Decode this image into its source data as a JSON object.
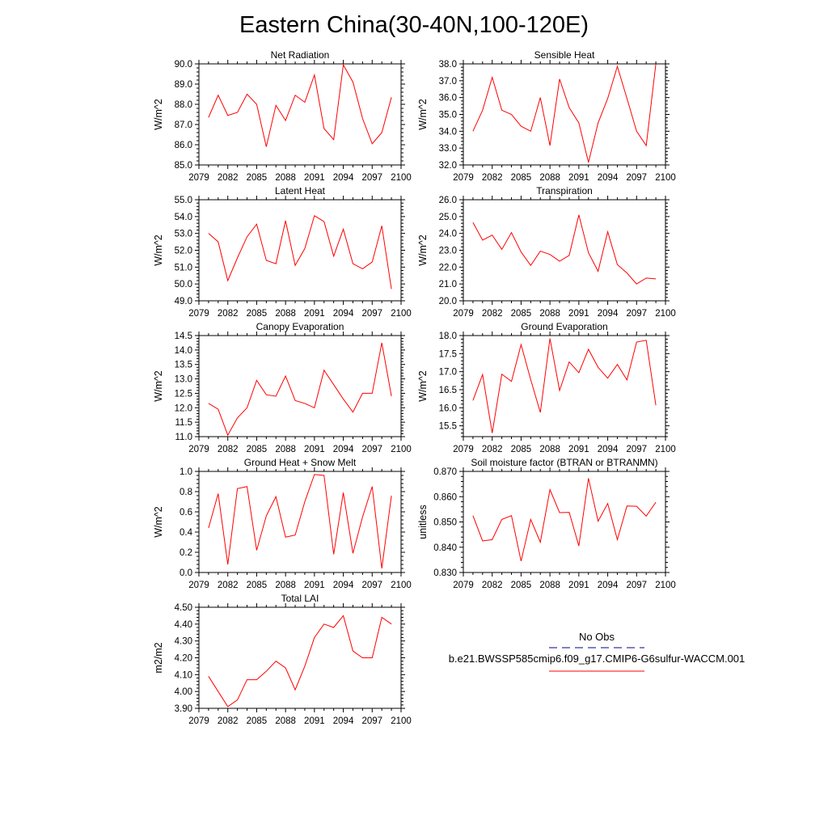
{
  "page_title": "Eastern China(30-40N,100-120E)",
  "colors": {
    "model": "#ff0000",
    "obs": "#000080",
    "axis": "#000000"
  },
  "legend": {
    "obs_label": "No Obs",
    "model_label": "b.e21.BWSSP585cmip6.f09_g17.CMIP6-G6sulfur-WACCM.001"
  },
  "chart_data": [
    {
      "type": "line",
      "title": "Net Radiation",
      "xlabel": "",
      "ylabel": "W/m^2",
      "xlim": [
        2079,
        2100
      ],
      "ylim": [
        85.0,
        90.0
      ],
      "xticks": [
        "2079",
        "2082",
        "2085",
        "2088",
        "2091",
        "2094",
        "2097",
        "2100"
      ],
      "yticks": [
        "85.0",
        "86.0",
        "87.0",
        "88.0",
        "89.0",
        "90.0"
      ],
      "x": [
        2080,
        2081,
        2082,
        2083,
        2084,
        2085,
        2086,
        2087,
        2088,
        2089,
        2090,
        2091,
        2092,
        2093,
        2094,
        2095,
        2096,
        2097,
        2098,
        2099
      ],
      "series": [
        {
          "values": [
            87.35,
            88.45,
            87.45,
            87.6,
            88.5,
            88.0,
            85.9,
            87.95,
            87.2,
            88.45,
            88.1,
            89.45,
            86.8,
            86.25,
            89.95,
            89.1,
            87.3,
            86.05,
            86.6,
            88.35
          ]
        }
      ]
    },
    {
      "type": "line",
      "title": "Sensible Heat",
      "xlabel": "",
      "ylabel": "W/m^2",
      "xlim": [
        2079,
        2100
      ],
      "ylim": [
        32.0,
        38.0
      ],
      "xticks": [
        "2079",
        "2082",
        "2085",
        "2088",
        "2091",
        "2094",
        "2097",
        "2100"
      ],
      "yticks": [
        "32.0",
        "33.0",
        "34.0",
        "35.0",
        "36.0",
        "37.0",
        "38.0"
      ],
      "x": [
        2080,
        2081,
        2082,
        2083,
        2084,
        2085,
        2086,
        2087,
        2088,
        2089,
        2090,
        2091,
        2092,
        2093,
        2094,
        2095,
        2096,
        2097,
        2098,
        2099
      ],
      "series": [
        {
          "values": [
            34.0,
            35.25,
            37.2,
            35.25,
            35.0,
            34.3,
            34.0,
            36.0,
            33.15,
            37.1,
            35.4,
            34.5,
            32.15,
            34.5,
            35.95,
            37.85,
            35.95,
            34.0,
            33.15,
            38.0
          ]
        }
      ]
    },
    {
      "type": "line",
      "title": "Latent Heat",
      "xlabel": "",
      "ylabel": "W/m^2",
      "xlim": [
        2079,
        2100
      ],
      "ylim": [
        49.0,
        55.0
      ],
      "xticks": [
        "2079",
        "2082",
        "2085",
        "2088",
        "2091",
        "2094",
        "2097",
        "2100"
      ],
      "yticks": [
        "49.0",
        "50.0",
        "51.0",
        "52.0",
        "53.0",
        "54.0",
        "55.0"
      ],
      "x": [
        2080,
        2081,
        2082,
        2083,
        2084,
        2085,
        2086,
        2087,
        2088,
        2089,
        2090,
        2091,
        2092,
        2093,
        2094,
        2095,
        2096,
        2097,
        2098,
        2099
      ],
      "series": [
        {
          "values": [
            53.0,
            52.5,
            50.2,
            51.55,
            52.8,
            53.55,
            51.4,
            51.2,
            53.75,
            51.1,
            52.1,
            54.05,
            53.7,
            51.65,
            53.25,
            51.2,
            50.9,
            51.3,
            53.45,
            49.7
          ]
        }
      ]
    },
    {
      "type": "line",
      "title": "Transpiration",
      "xlabel": "",
      "ylabel": "W/m^2",
      "xlim": [
        2079,
        2100
      ],
      "ylim": [
        20.0,
        26.0
      ],
      "xticks": [
        "2079",
        "2082",
        "2085",
        "2088",
        "2091",
        "2094",
        "2097",
        "2100"
      ],
      "yticks": [
        "20.0",
        "21.0",
        "22.0",
        "23.0",
        "24.0",
        "25.0",
        "26.0"
      ],
      "x": [
        2080,
        2081,
        2082,
        2083,
        2084,
        2085,
        2086,
        2087,
        2088,
        2089,
        2090,
        2091,
        2092,
        2093,
        2094,
        2095,
        2096,
        2097,
        2098,
        2099
      ],
      "series": [
        {
          "values": [
            24.65,
            23.6,
            23.9,
            23.05,
            24.05,
            22.9,
            22.1,
            22.95,
            22.75,
            22.35,
            22.7,
            25.1,
            22.85,
            21.75,
            24.1,
            22.15,
            21.65,
            21.0,
            21.35,
            21.3
          ]
        }
      ]
    },
    {
      "type": "line",
      "title": "Canopy Evaporation",
      "xlabel": "",
      "ylabel": "W/m^2",
      "xlim": [
        2079,
        2100
      ],
      "ylim": [
        11.0,
        14.5
      ],
      "xticks": [
        "2079",
        "2082",
        "2085",
        "2088",
        "2091",
        "2094",
        "2097",
        "2100"
      ],
      "yticks": [
        "11.0",
        "11.5",
        "12.0",
        "12.5",
        "13.0",
        "13.5",
        "14.0",
        "14.5"
      ],
      "x": [
        2080,
        2081,
        2082,
        2083,
        2084,
        2085,
        2086,
        2087,
        2088,
        2089,
        2090,
        2091,
        2092,
        2093,
        2094,
        2095,
        2096,
        2097,
        2098,
        2099
      ],
      "series": [
        {
          "values": [
            12.15,
            11.95,
            11.05,
            11.65,
            12.0,
            12.95,
            12.45,
            12.4,
            13.1,
            12.25,
            12.15,
            12.0,
            13.3,
            12.8,
            12.3,
            11.85,
            12.5,
            12.5,
            14.25,
            12.4
          ]
        }
      ]
    },
    {
      "type": "line",
      "title": "Ground Evaporation",
      "xlabel": "",
      "ylabel": "W/m^2",
      "xlim": [
        2079,
        2100
      ],
      "ylim": [
        15.2,
        18.0
      ],
      "xticks": [
        "2079",
        "2082",
        "2085",
        "2088",
        "2091",
        "2094",
        "2097",
        "2100"
      ],
      "yticks": [
        "15.5",
        "16.0",
        "16.5",
        "17.0",
        "17.5",
        "18.0"
      ],
      "x": [
        2080,
        2081,
        2082,
        2083,
        2084,
        2085,
        2086,
        2087,
        2088,
        2089,
        2090,
        2091,
        2092,
        2093,
        2094,
        2095,
        2096,
        2097,
        2098,
        2099
      ],
      "series": [
        {
          "values": [
            16.2,
            16.92,
            15.3,
            16.93,
            16.73,
            17.75,
            16.78,
            15.87,
            17.92,
            16.48,
            17.27,
            16.97,
            17.62,
            17.12,
            16.82,
            17.2,
            16.77,
            17.82,
            17.87,
            16.07
          ]
        }
      ]
    },
    {
      "type": "line",
      "title": "Ground Heat + Snow Melt",
      "xlabel": "",
      "ylabel": "W/m^2",
      "xlim": [
        2079,
        2100
      ],
      "ylim": [
        0.0,
        1.0
      ],
      "xticks": [
        "2079",
        "2082",
        "2085",
        "2088",
        "2091",
        "2094",
        "2097",
        "2100"
      ],
      "yticks": [
        "0.0",
        "0.2",
        "0.4",
        "0.6",
        "0.8",
        "1.0"
      ],
      "x": [
        2080,
        2081,
        2082,
        2083,
        2084,
        2085,
        2086,
        2087,
        2088,
        2089,
        2090,
        2091,
        2092,
        2093,
        2094,
        2095,
        2096,
        2097,
        2098,
        2099
      ],
      "series": [
        {
          "values": [
            0.44,
            0.78,
            0.08,
            0.83,
            0.85,
            0.22,
            0.56,
            0.75,
            0.35,
            0.37,
            0.7,
            0.97,
            0.96,
            0.18,
            0.79,
            0.19,
            0.55,
            0.85,
            0.04,
            0.76
          ]
        }
      ]
    },
    {
      "type": "line",
      "title": "Soil moisture factor (BTRAN or BTRANMN)",
      "xlabel": "",
      "ylabel": "unitless",
      "xlim": [
        2079,
        2100
      ],
      "ylim": [
        0.83,
        0.87
      ],
      "xticks": [
        "2079",
        "2082",
        "2085",
        "2088",
        "2091",
        "2094",
        "2097",
        "2100"
      ],
      "yticks": [
        "0.830",
        "0.840",
        "0.850",
        "0.860",
        "0.870"
      ],
      "x": [
        2080,
        2081,
        2082,
        2083,
        2084,
        2085,
        2086,
        2087,
        2088,
        2089,
        2090,
        2091,
        2092,
        2093,
        2094,
        2095,
        2096,
        2097,
        2098,
        2099
      ],
      "series": [
        {
          "values": [
            0.8525,
            0.8425,
            0.843,
            0.851,
            0.8525,
            0.8345,
            0.851,
            0.842,
            0.8628,
            0.8537,
            0.8538,
            0.8405,
            0.8673,
            0.8503,
            0.8573,
            0.843,
            0.8563,
            0.8562,
            0.8523,
            0.8578
          ]
        }
      ]
    },
    {
      "type": "line",
      "title": "Total LAI",
      "xlabel": "",
      "ylabel": "m2/m2",
      "xlim": [
        2079,
        2100
      ],
      "ylim": [
        3.9,
        4.5
      ],
      "xticks": [
        "2079",
        "2082",
        "2085",
        "2088",
        "2091",
        "2094",
        "2097",
        "2100"
      ],
      "yticks": [
        "3.90",
        "4.00",
        "4.10",
        "4.20",
        "4.30",
        "4.40",
        "4.50"
      ],
      "x": [
        2080,
        2081,
        2082,
        2083,
        2084,
        2085,
        2086,
        2087,
        2088,
        2089,
        2090,
        2091,
        2092,
        2093,
        2094,
        2095,
        2096,
        2097,
        2098,
        2099
      ],
      "series": [
        {
          "values": [
            4.09,
            4.0,
            3.91,
            3.95,
            4.07,
            4.07,
            4.12,
            4.18,
            4.14,
            4.01,
            4.15,
            4.32,
            4.4,
            4.38,
            4.45,
            4.24,
            4.2,
            4.2,
            4.44,
            4.4
          ]
        }
      ]
    }
  ]
}
